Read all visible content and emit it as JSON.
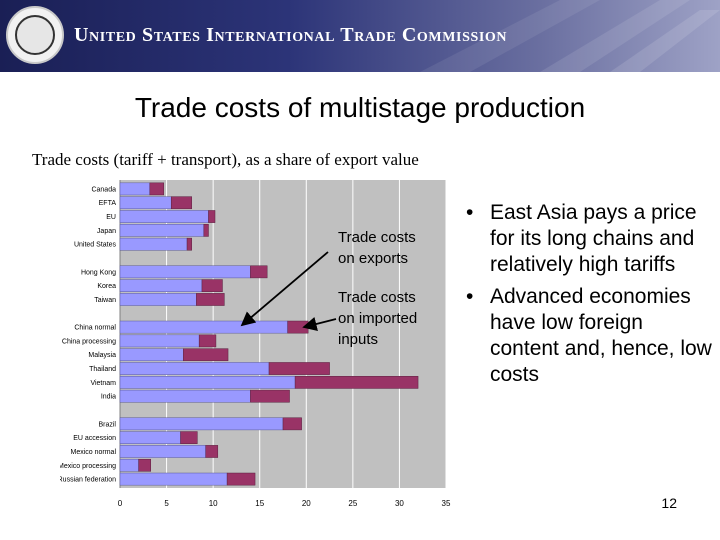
{
  "header": {
    "organization": "United States International Trade Commission",
    "logo": "usitc-seal"
  },
  "slide": {
    "title": "Trade costs of multistage production",
    "subtitle": "Trade costs (tariff + transport), as a share of export value",
    "page_number": "12"
  },
  "annotations": {
    "exports": [
      "Trade costs",
      "on exports"
    ],
    "imported": [
      "Trade costs",
      "on imported",
      "inputs"
    ]
  },
  "bullets": [
    "East Asia pays a price for its long chains and relatively high tariffs",
    "Advanced economies have low foreign content and, hence, low costs"
  ],
  "colors": {
    "exports": "#9999ff",
    "imported": "#993366",
    "plot_bg": "#c0c0c0"
  },
  "chart_data": {
    "type": "bar",
    "orientation": "horizontal",
    "stacked": true,
    "xlim": [
      0,
      35
    ],
    "xticks": [
      "0",
      "5",
      "10",
      "15",
      "20",
      "25",
      "30",
      "35"
    ],
    "grid": true,
    "categories": [
      "Canada",
      "EFTA",
      "EU",
      "Japan",
      "United States",
      "Hong Kong",
      "Korea",
      "Taiwan",
      "China normal",
      "China processing",
      "Malaysia",
      "Thailand",
      "Vietnam",
      "India",
      "Brazil",
      "EU accession",
      "Mexico normal",
      "Mexico processing",
      "Russian federation"
    ],
    "groups": [
      [
        0,
        1,
        2,
        3,
        4
      ],
      [
        5,
        6,
        7
      ],
      [
        8,
        9,
        10,
        11,
        12,
        13
      ],
      [
        14,
        15,
        16,
        17,
        18
      ]
    ],
    "series": [
      {
        "key": "exports",
        "values": [
          3.2,
          5.5,
          9.5,
          9.0,
          7.2,
          14.0,
          8.8,
          8.2,
          18.0,
          8.5,
          6.8,
          16.0,
          18.8,
          14.0,
          17.5,
          6.5,
          9.2,
          2.0,
          11.5
        ]
      },
      {
        "key": "imported",
        "values": [
          1.5,
          2.2,
          0.7,
          0.5,
          0.5,
          1.8,
          2.2,
          3.0,
          2.2,
          1.8,
          4.8,
          6.5,
          13.2,
          4.2,
          2.0,
          1.8,
          1.3,
          1.3,
          3.0
        ]
      }
    ]
  }
}
